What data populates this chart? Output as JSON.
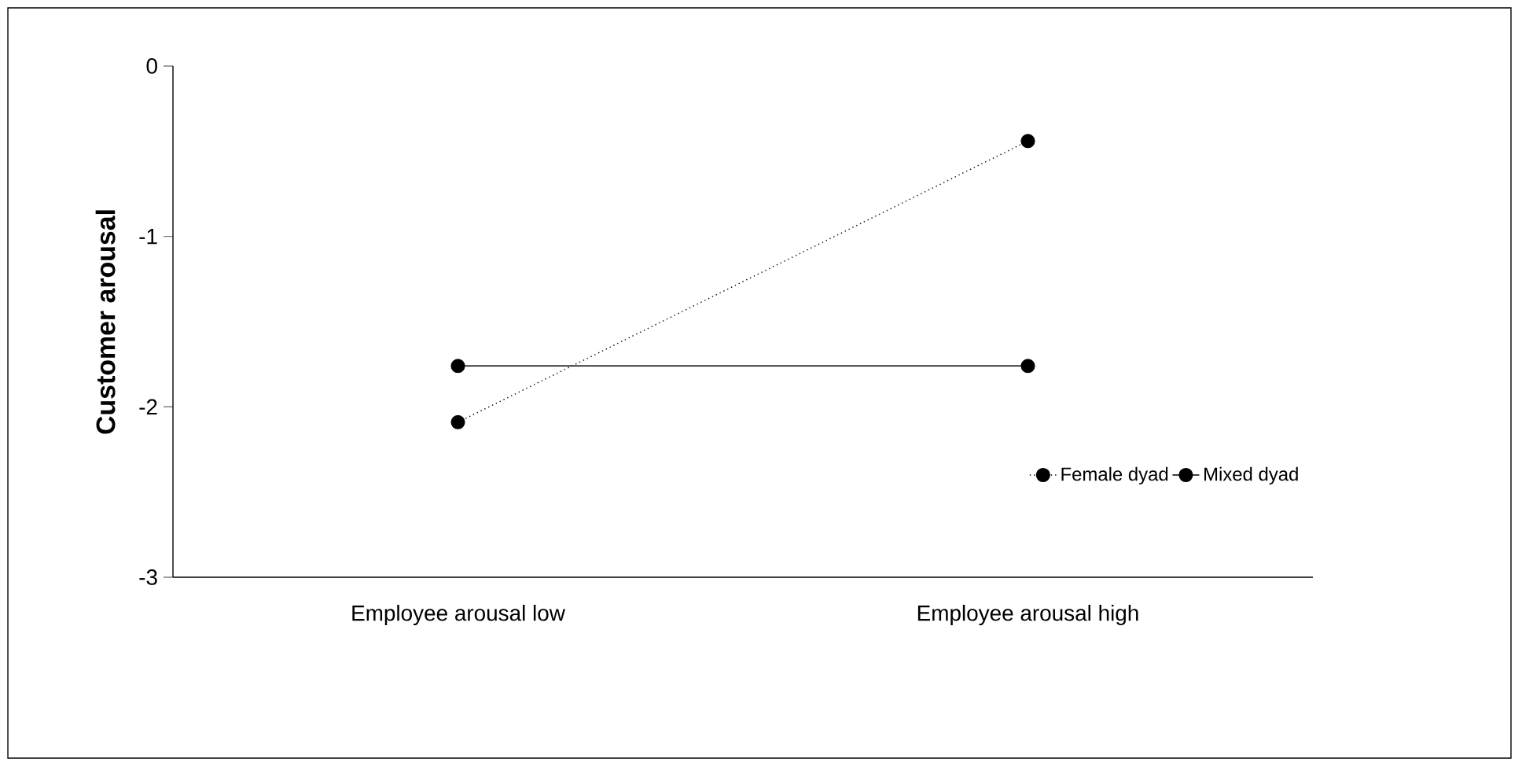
{
  "chart_data": {
    "type": "line",
    "ylabel": "Customer arousal",
    "categories": [
      "Employee arousal low",
      "Employee arousal high"
    ],
    "series": [
      {
        "name": "Female dyad",
        "color": "#000000",
        "line_style": "dotted",
        "values": [
          -2.09,
          -0.44
        ]
      },
      {
        "name": "Mixed dyad",
        "color": "#000000",
        "line_style": "solid",
        "values": [
          -1.76,
          -1.76
        ]
      }
    ],
    "ylim": [
      -3,
      0
    ],
    "yticks": [
      -3,
      -2,
      -1,
      0
    ],
    "marker": "circle",
    "legend": "bottom right",
    "grid": false
  }
}
